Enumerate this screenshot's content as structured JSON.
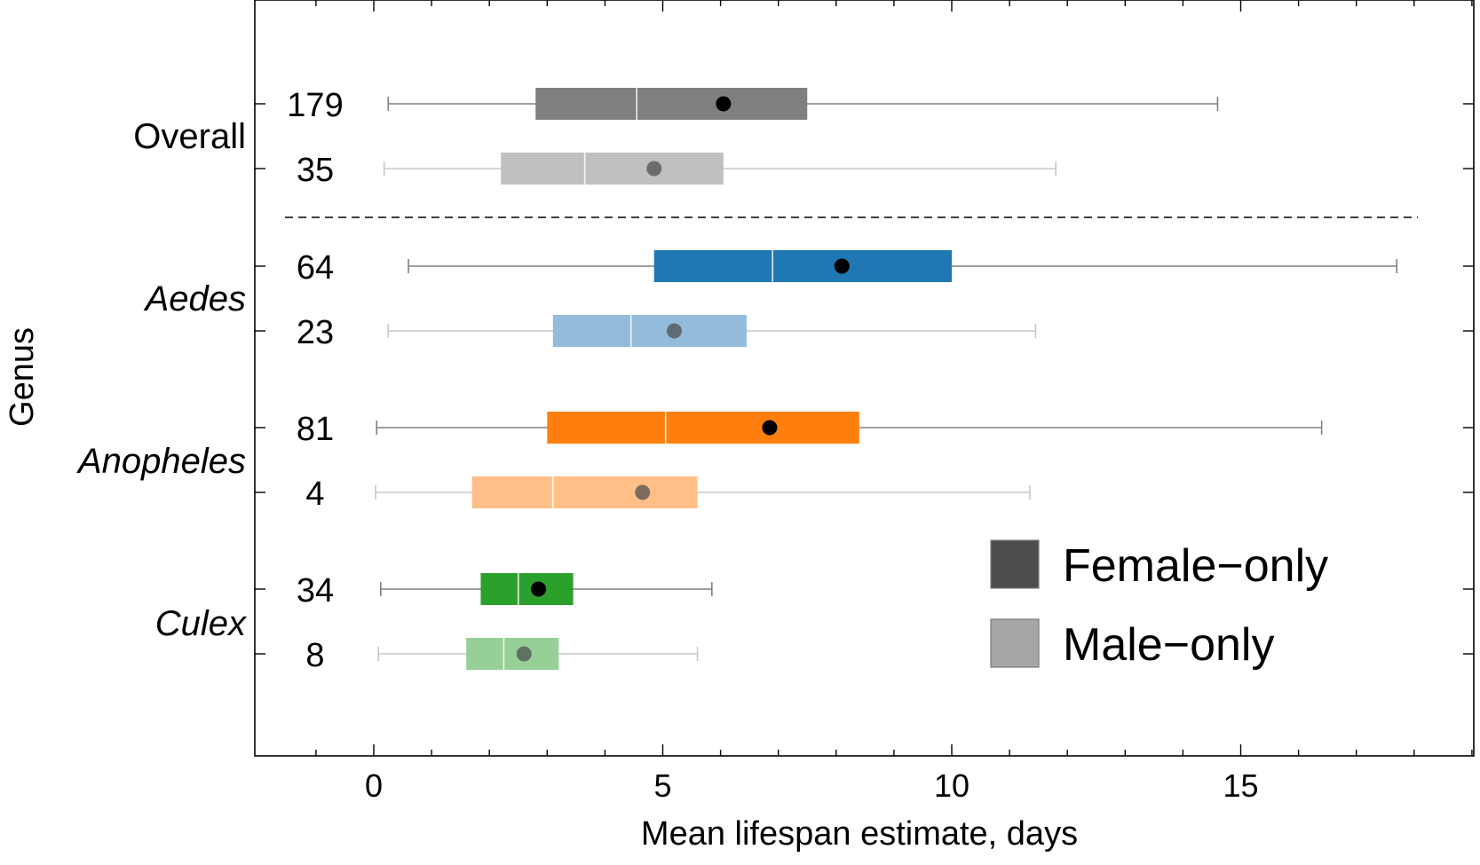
{
  "chart_data": {
    "type": "boxplot",
    "orientation": "horizontal",
    "xlabel": "Mean lifespan estimate, days",
    "ylabel": "Genus",
    "xlim": [
      -2.05,
      19.05
    ],
    "xticks": [
      0,
      5,
      10,
      15
    ],
    "grid": false,
    "legend": {
      "placement": "lower-right",
      "entries": [
        {
          "label": "Female−only",
          "color": "#4d4d4d"
        },
        {
          "label": "Male−only",
          "color": "#a6a6a6"
        }
      ]
    },
    "groups": [
      {
        "name": "Overall",
        "italic": false,
        "rows": [
          {
            "sex": "Female−only",
            "n": "179",
            "whislo": 0.25,
            "q1": 2.8,
            "median": 4.55,
            "q3": 7.5,
            "whishi": 14.6,
            "mean": 6.05,
            "color": "#7f7f7f"
          },
          {
            "sex": "Male−only",
            "n": "35",
            "whislo": 0.18,
            "q1": 2.2,
            "median": 3.65,
            "q3": 6.05,
            "whishi": 11.8,
            "mean": 4.85,
            "color": "#c0c0c0"
          }
        ]
      },
      {
        "name": "Aedes",
        "italic": true,
        "rows": [
          {
            "sex": "Female−only",
            "n": "64",
            "whislo": 0.6,
            "q1": 4.85,
            "median": 6.9,
            "q3": 10.0,
            "whishi": 17.7,
            "mean": 8.1,
            "color": "#1f77b4"
          },
          {
            "sex": "Male−only",
            "n": "23",
            "whislo": 0.25,
            "q1": 3.1,
            "median": 4.45,
            "q3": 6.45,
            "whishi": 11.45,
            "mean": 5.2,
            "color": "#92bbdc"
          }
        ]
      },
      {
        "name": "Anopheles",
        "italic": true,
        "rows": [
          {
            "sex": "Female−only",
            "n": "81",
            "whislo": 0.05,
            "q1": 3.0,
            "median": 5.05,
            "q3": 8.4,
            "whishi": 16.4,
            "mean": 6.85,
            "color": "#ff7f0e"
          },
          {
            "sex": "Male−only",
            "n": "4",
            "whislo": 0.03,
            "q1": 1.7,
            "median": 3.1,
            "q3": 5.6,
            "whishi": 11.35,
            "mean": 4.65,
            "color": "#ffbf87"
          }
        ]
      },
      {
        "name": "Culex",
        "italic": true,
        "rows": [
          {
            "sex": "Female−only",
            "n": "34",
            "whislo": 0.12,
            "q1": 1.85,
            "median": 2.5,
            "q3": 3.45,
            "whishi": 5.85,
            "mean": 2.85,
            "color": "#2ca02c"
          },
          {
            "sex": "Male−only",
            "n": "8",
            "whislo": 0.08,
            "q1": 1.6,
            "median": 2.25,
            "q3": 3.2,
            "whishi": 5.6,
            "mean": 2.6,
            "color": "#96d096"
          }
        ]
      }
    ]
  }
}
